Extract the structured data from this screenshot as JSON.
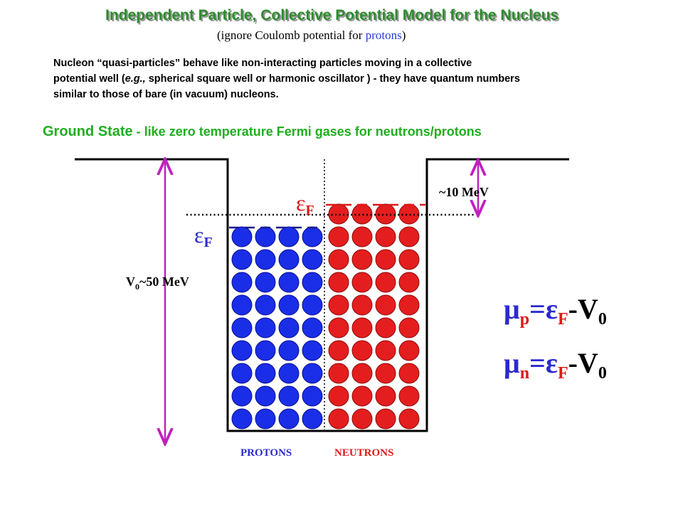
{
  "header": {
    "title": "Independent Particle, Collective Potential Model for the Nucleus",
    "subtitle": [
      "(ignore Coulomb potential for ",
      "protons",
      ")"
    ]
  },
  "intro": {
    "line1": "Nucleon “quasi-particles” behave like non-interacting particles moving in a collective",
    "line2": [
      "potential well (",
      "e.g.,",
      " spherical square well or harmonic oscillator ) - they have quantum numbers"
    ],
    "line3": "similar to those of bare (in vacuum) nucleons."
  },
  "heading": {
    "lead": "Ground State",
    "rest": " - like zero temperature Fermi gases for neutrons/protons"
  },
  "diagram": {
    "fermi_neutron": {
      "symbol": "ε",
      "sub": "F"
    },
    "fermi_proton": {
      "symbol": "ε",
      "sub": "F"
    },
    "depth": {
      "symbol": "V",
      "sub": "0",
      "text": "~50 MeV"
    },
    "gap": "~10 MeV",
    "protons": "PROTONS",
    "neutrons": "NEUTRONS"
  },
  "equations": [
    {
      "mu": "μ",
      "mu_sub": "p",
      "eq": "=",
      "eps": "ε",
      "eps_sub": "F",
      "minus": "-V",
      "v_sub": "0"
    },
    {
      "mu": "μ",
      "mu_sub": "n",
      "eq": "=",
      "eps": "ε",
      "eps_sub": "F",
      "minus": "-V",
      "v_sub": "0"
    }
  ]
}
